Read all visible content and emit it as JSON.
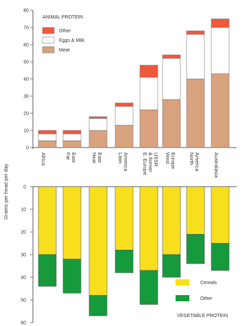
{
  "chart_data": [
    {
      "type": "bar",
      "stacked": true,
      "title": "ANIMAL PROTEIN",
      "ylabel": "Grams per head per day",
      "ylim": [
        0,
        80
      ],
      "yticks": [
        0,
        10,
        20,
        30,
        40,
        50,
        60,
        70,
        80
      ],
      "categories": [
        "Africa",
        "Far East",
        "Near East",
        "Latin America",
        "E. Europe & former USSR",
        "West Europe",
        "North America",
        "Australasia"
      ],
      "category_lines": [
        [
          "Africa"
        ],
        [
          "Far",
          "East"
        ],
        [
          "Near",
          "East"
        ],
        [
          "Latin",
          "America"
        ],
        [
          "E. Europe",
          "& former",
          "USSR"
        ],
        [
          "West",
          "Europe"
        ],
        [
          "North",
          "America"
        ],
        [
          "Australasia"
        ]
      ],
      "series": [
        {
          "name": "Meat",
          "color": "#d9a27e",
          "values": [
            4,
            4,
            10,
            13,
            22,
            28,
            40,
            43
          ]
        },
        {
          "name": "Eggs & Milk",
          "color": "#ffffff",
          "values": [
            4,
            4,
            7,
            11,
            19,
            24,
            26,
            27
          ]
        },
        {
          "name": "Other",
          "color": "#f0583c",
          "values": [
            2,
            2,
            1,
            2,
            7,
            2,
            2,
            5
          ]
        }
      ],
      "legend_position": "top-left"
    },
    {
      "type": "bar",
      "stacked": true,
      "inverted": true,
      "title": "VEGETABLE PROTEIN",
      "ylim": [
        0,
        60
      ],
      "yticks": [
        0,
        10,
        20,
        30,
        40,
        50,
        60
      ],
      "categories": [
        "Africa",
        "Far East",
        "Near East",
        "Latin America",
        "E. Europe & former USSR",
        "West Europe",
        "North America",
        "Australasia"
      ],
      "series": [
        {
          "name": "Cereals",
          "color": "#f8df1e",
          "values": [
            30,
            32,
            48,
            28,
            37,
            30,
            21,
            25
          ]
        },
        {
          "name": "Other",
          "color": "#169a3c",
          "values": [
            14,
            15,
            9,
            10,
            15,
            10,
            13,
            12
          ]
        }
      ],
      "legend_position": "bottom-right"
    }
  ]
}
